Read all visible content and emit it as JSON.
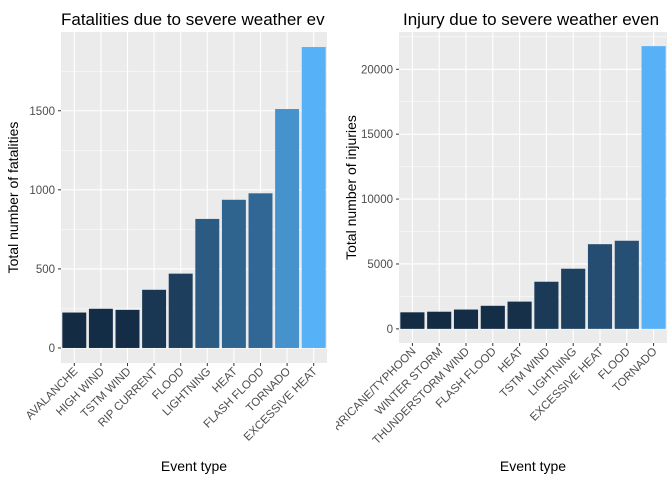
{
  "chart_data": [
    {
      "type": "bar",
      "title": "Fatalities due to severe weather ev",
      "xlabel": "Event type",
      "ylabel": "Total number of fatalities",
      "categories": [
        "AVALANCHE",
        "HIGH WIND",
        "TSTM WIND",
        "RIP CURRENT",
        "FLOOD",
        "LIGHTNING",
        "HEAT",
        "FLASH FLOOD",
        "TORNADO",
        "EXCESSIVE HEAT"
      ],
      "values": [
        224,
        248,
        241,
        368,
        470,
        816,
        937,
        978,
        1511,
        1903
      ],
      "yticks": [
        0,
        500,
        1000,
        1500
      ],
      "ylim": [
        -95,
        1998
      ],
      "grid": true,
      "color_low": "#132B43",
      "color_high": "#56B1F7"
    },
    {
      "type": "bar",
      "title": "Injury due to severe weather even",
      "xlabel": "Event type",
      "ylabel": "Total number of injuries",
      "categories": [
        "HURRICANE/TYPHOON",
        "WINTER STORM",
        "THUNDERSTORM WIND",
        "FLASH FLOOD",
        "HEAT",
        "TSTM WIND",
        "LIGHTNING",
        "EXCESSIVE HEAT",
        "FLOOD",
        "TORNADO"
      ],
      "values": [
        1275,
        1321,
        1488,
        1777,
        2100,
        3631,
        4633,
        6525,
        6789,
        21785
      ],
      "yticks": [
        0,
        5000,
        10000,
        15000,
        20000
      ],
      "ylim": [
        -1089,
        22874
      ],
      "grid": true,
      "color_low": "#132B43",
      "color_high": "#56B1F7"
    }
  ]
}
